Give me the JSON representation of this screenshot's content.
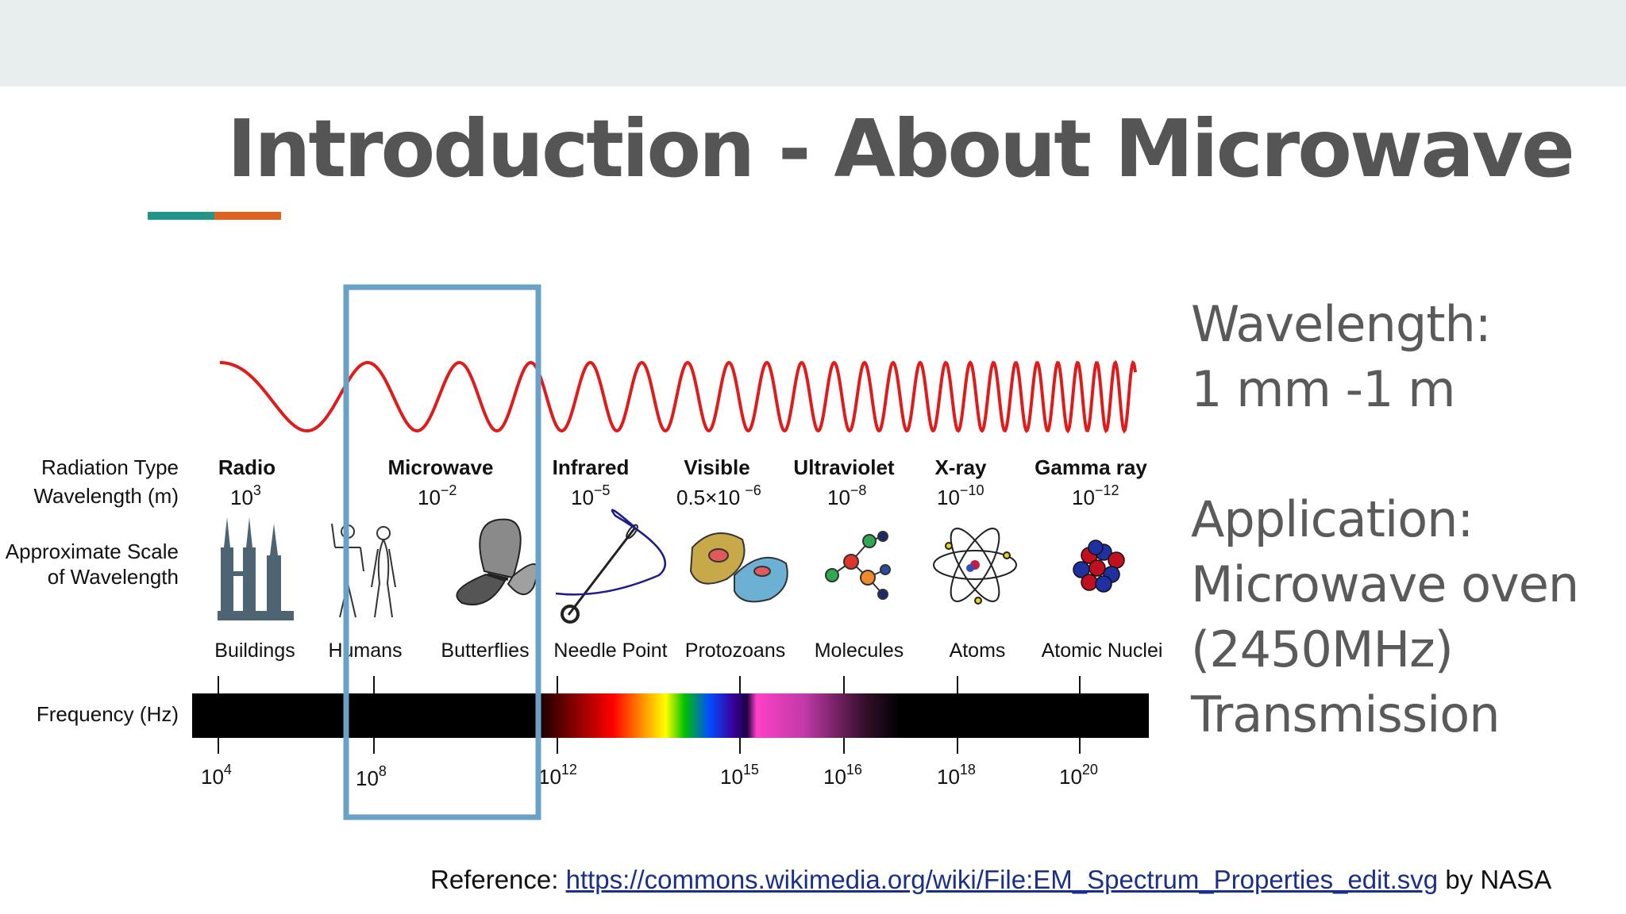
{
  "slide": {
    "title": "Introduction - About Microwave",
    "accent_colors": [
      "#1f9688",
      "#e0621e"
    ]
  },
  "side_panel": {
    "wavelength_heading": "Wavelength:",
    "wavelength_value": "1 mm -1 m",
    "application_heading": "Application:",
    "application_items": [
      "Microwave oven",
      "(2450MHz)",
      "Transmission"
    ]
  },
  "diagram": {
    "row_labels": {
      "radiation_type": "Radiation Type",
      "wavelength": "Wavelength (m)",
      "scale_line1": "Approximate Scale",
      "scale_line2": "of Wavelength",
      "frequency": "Frequency (Hz)"
    },
    "radiation_types": [
      {
        "name": "Radio",
        "wl_base": "10",
        "wl_exp": "3"
      },
      {
        "name": "Microwave",
        "wl_base": "10",
        "wl_exp": "−2"
      },
      {
        "name": "Infrared",
        "wl_base": "10",
        "wl_exp": "−5"
      },
      {
        "name": "Visible",
        "wl_base": "0.5×10",
        "wl_exp": "−6"
      },
      {
        "name": "Ultraviolet",
        "wl_base": "10",
        "wl_exp": "−8"
      },
      {
        "name": "X-ray",
        "wl_base": "10",
        "wl_exp": "−10"
      },
      {
        "name": "Gamma ray",
        "wl_base": "10",
        "wl_exp": "−12"
      }
    ],
    "scale_objects": [
      "Buildings",
      "Humans",
      "Butterflies",
      "Needle Point",
      "Protozoans",
      "Molecules",
      "Atoms",
      "Atomic Nuclei"
    ],
    "frequency_ticks": [
      {
        "base": "10",
        "exp": "4"
      },
      {
        "base": "10",
        "exp": "8"
      },
      {
        "base": "10",
        "exp": "12"
      },
      {
        "base": "10",
        "exp": "15"
      },
      {
        "base": "10",
        "exp": "16"
      },
      {
        "base": "10",
        "exp": "18"
      },
      {
        "base": "10",
        "exp": "20"
      }
    ],
    "highlight_color": "#6ba1c4",
    "wave_color": "#e01b1b"
  },
  "reference": {
    "prefix": "Reference: ",
    "link_text": "https://commons.wikimedia.org/wiki/File:EM_Spectrum_Properties_edit.svg",
    "suffix": " by NASA"
  }
}
